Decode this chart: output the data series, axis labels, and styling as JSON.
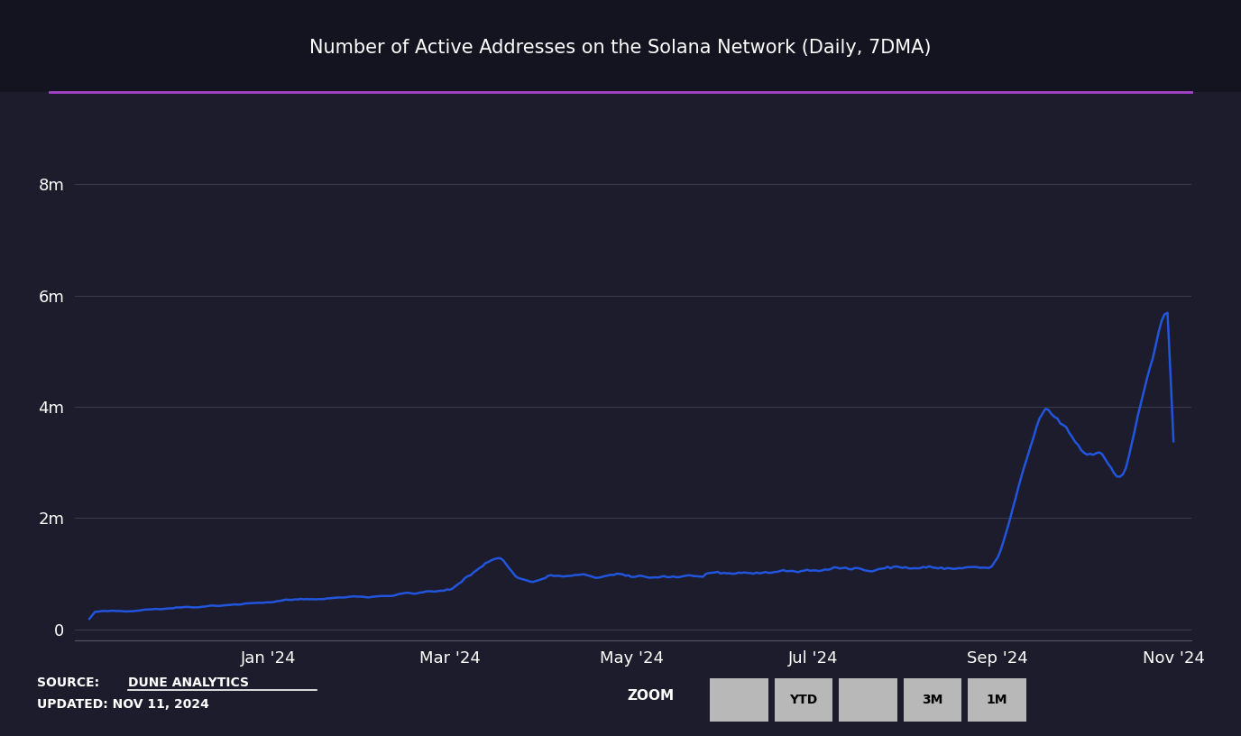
{
  "title": "Number of Active Addresses on the Solana Network (Daily, 7DMA)",
  "bg_color": "#1c1c2c",
  "header_bg": "#141420",
  "line_color": "#2255dd",
  "purple_line_color": "#aa44cc",
  "grid_color": "#3a3a4a",
  "text_color": "#ffffff",
  "yticks": [
    0,
    2000000,
    4000000,
    6000000,
    8000000
  ],
  "ytick_labels": [
    "0",
    "2m",
    "4m",
    "6m",
    "8m"
  ],
  "ylim": [
    -200000,
    8800000
  ],
  "xtick_positions": [
    60,
    121,
    182,
    243,
    305,
    364
  ],
  "xtick_labels": [
    "Jan '24",
    "Mar '24",
    "May '24",
    "Jul '24",
    "Sep '24",
    "Nov '24"
  ],
  "zoom_label": "ZOOM",
  "zoom_buttons": [
    "",
    "YTD",
    "",
    "3M",
    "1M"
  ]
}
